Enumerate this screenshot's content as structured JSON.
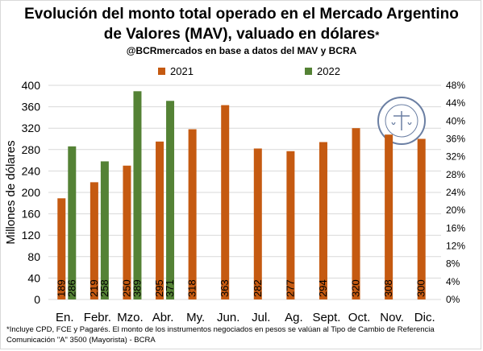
{
  "title_line1": "Evolución del monto total operado en el Mercado Argentino",
  "title_line2": "de Valores (MAV), valuado en dólares",
  "title_star": "*",
  "subtitle": "@BCRmercados en base a datos del MAV y BCRA",
  "footnote_line1": "*Incluye CPD, FCE y Pagarés. El monto de los instrumentos  negociados en pesos se valúan al Tipo de Cambio de Referencia",
  "footnote_line2": "Comunicación \"A\" 3500 (Mayorista) - BCRA",
  "seal_icon": "bolsa-de-comercio-de-rosario-seal",
  "chart_data": {
    "type": "bar",
    "ylabel": "Millones de dólares",
    "ylim": [
      0,
      400
    ],
    "yticks": [
      0,
      40,
      80,
      120,
      160,
      200,
      240,
      280,
      320,
      360,
      400
    ],
    "y2lim": [
      0,
      0.48
    ],
    "y2ticks": [
      "0%",
      "4%",
      "8%",
      "12%",
      "16%",
      "20%",
      "24%",
      "28%",
      "32%",
      "36%",
      "40%",
      "44%",
      "48%"
    ],
    "grid": true,
    "legend_position": "top",
    "categories": [
      "En.",
      "Febr.",
      "Mzo.",
      "Abr.",
      "My.",
      "Jun.",
      "Jul.",
      "Ag.",
      "Sept.",
      "Oct.",
      "Nov.",
      "Dic."
    ],
    "series": [
      {
        "name": "2021",
        "color": "#C55A11",
        "values": [
          189,
          219,
          250,
          295,
          318,
          363,
          282,
          277,
          294,
          320,
          308,
          300
        ]
      },
      {
        "name": "2022",
        "color": "#548235",
        "values": [
          286,
          258,
          389,
          371,
          null,
          null,
          null,
          null,
          null,
          null,
          null,
          null
        ]
      }
    ]
  }
}
